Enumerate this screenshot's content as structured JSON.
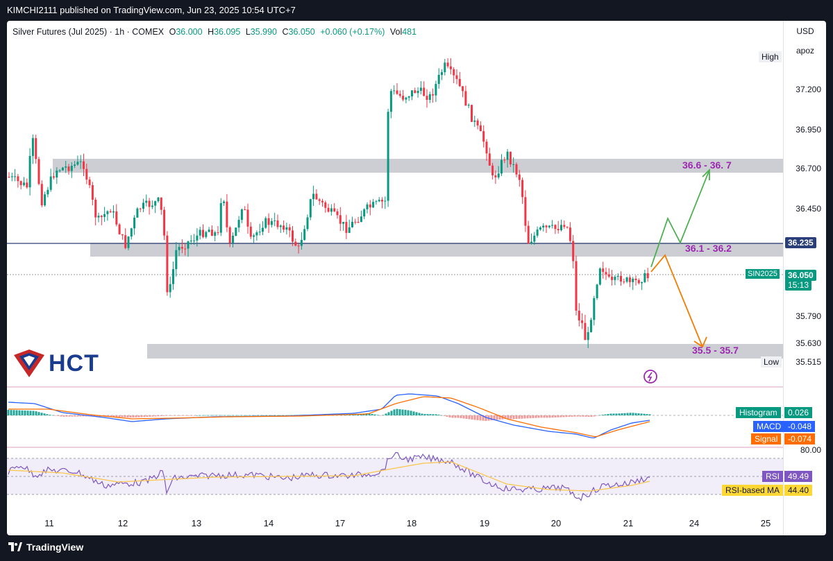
{
  "publish_line": "KIMCHI2111 published on TradingView.com, Jun 23, 2025 10:54 UTC+7",
  "symbol": {
    "name": "Silver Futures (Jul 2025) · 1h · COMEX",
    "open_label": "O",
    "open": "36.000",
    "high_label": "H",
    "high": "36.095",
    "low_label": "L",
    "low": "35.990",
    "close_label": "C",
    "close": "36.050",
    "change": "+0.060 (+0.17%)",
    "vol_label": "Vol",
    "vol": "481"
  },
  "axis": {
    "currency": "USD",
    "mode": "apoz",
    "ticks": [
      "37.200",
      "36.950",
      "36.700",
      "36.450",
      "36.235",
      "36.050",
      "35.790",
      "35.630",
      "35.515"
    ],
    "high_label": "High",
    "low_label": "Low",
    "low_value": "35.515",
    "countdown": "15:13",
    "ticker": "SIN2025",
    "x_labels": [
      "11",
      "12",
      "13",
      "14",
      "17",
      "18",
      "19",
      "20",
      "21",
      "24",
      "25"
    ]
  },
  "annotations": {
    "zone_top": "36.6 - 36. 7",
    "zone_mid": "36.1 - 36.2",
    "zone_low": "35.5 - 35.7"
  },
  "macd": {
    "histogram_label": "Histogram",
    "histogram_value": "0.026",
    "macd_label": "MACD",
    "macd_value": "-0.048",
    "signal_label": "Signal",
    "signal_value": "-0.074"
  },
  "rsi": {
    "level": "80.00",
    "rsi_label": "RSI",
    "rsi_value": "49.49",
    "ma_label": "RSI-based MA",
    "ma_value": "44.40"
  },
  "logo": {
    "text": "HCT"
  },
  "footer": {
    "brand": "TradingView"
  },
  "colors": {
    "up": "#089981",
    "down": "#f23645",
    "macd": "#2962ff",
    "signal": "#ff6d00",
    "rsi": "#7e57c2",
    "rsi_ma": "#fdd835",
    "zone": "#b2b5be",
    "accent_green": "#4caf50",
    "accent_orange": "#f57c00",
    "label_purple": "#9c27b0"
  }
}
